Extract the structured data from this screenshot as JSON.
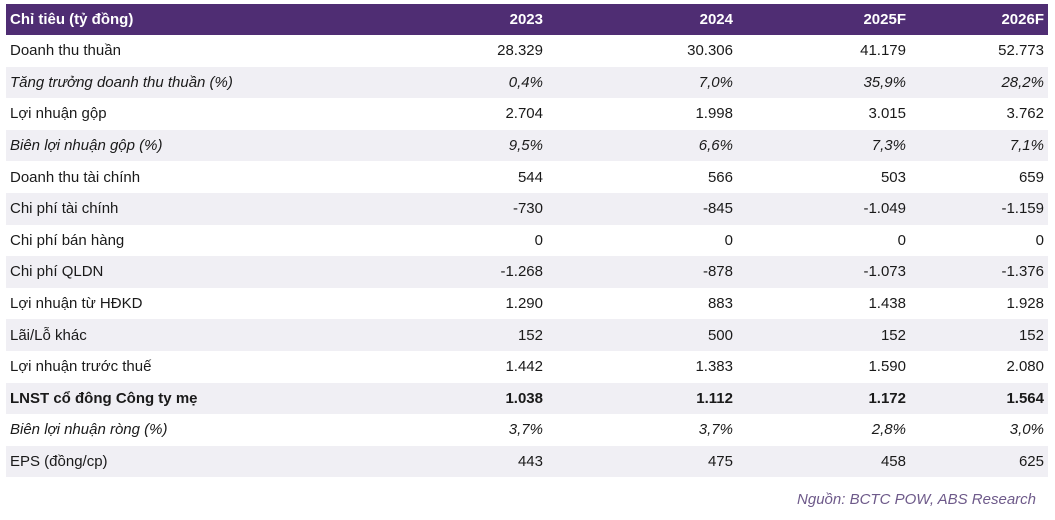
{
  "table": {
    "headers": [
      "Chỉ tiêu (tỷ đồng)",
      "2023",
      "2024",
      "2025F",
      "2026F"
    ],
    "rows": [
      {
        "label": "Doanh thu thuần",
        "values": [
          "28.329",
          "30.306",
          "41.179",
          "52.773"
        ],
        "style": "normal"
      },
      {
        "label": "Tăng trưởng doanh thu thuần (%)",
        "values": [
          "0,4%",
          "7,0%",
          "35,9%",
          "28,2%"
        ],
        "style": "italic"
      },
      {
        "label": "Lợi nhuận gộp",
        "values": [
          "2.704",
          "1.998",
          "3.015",
          "3.762"
        ],
        "style": "normal"
      },
      {
        "label": "Biên lợi nhuận gộp (%)",
        "values": [
          "9,5%",
          "6,6%",
          "7,3%",
          "7,1%"
        ],
        "style": "italic"
      },
      {
        "label": "Doanh thu tài chính",
        "values": [
          "544",
          "566",
          "503",
          "659"
        ],
        "style": "normal"
      },
      {
        "label": "Chi phí tài chính",
        "values": [
          "-730",
          "-845",
          "-1.049",
          "-1.159"
        ],
        "style": "normal"
      },
      {
        "label": "Chi phí bán hàng",
        "values": [
          "0",
          "0",
          "0",
          "0"
        ],
        "style": "normal"
      },
      {
        "label": "Chi phí QLDN",
        "values": [
          "-1.268",
          "-878",
          "-1.073",
          "-1.376"
        ],
        "style": "normal"
      },
      {
        "label": "Lợi nhuận từ HĐKD",
        "values": [
          "1.290",
          "883",
          "1.438",
          "1.928"
        ],
        "style": "normal"
      },
      {
        "label": "Lãi/Lỗ khác",
        "values": [
          "152",
          "500",
          "152",
          "152"
        ],
        "style": "normal"
      },
      {
        "label": "Lợi nhuận trước thuế",
        "values": [
          "1.442",
          "1.383",
          "1.590",
          "2.080"
        ],
        "style": "normal"
      },
      {
        "label": "LNST cổ đông Công ty mẹ",
        "values": [
          "1.038",
          "1.112",
          "1.172",
          "1.564"
        ],
        "style": "bold"
      },
      {
        "label": "Biên lợi nhuận ròng (%)",
        "values": [
          "3,7%",
          "3,7%",
          "2,8%",
          "3,0%"
        ],
        "style": "italic"
      },
      {
        "label": "EPS (đồng/cp)",
        "values": [
          "443",
          "475",
          "458",
          "625"
        ],
        "style": "normal"
      }
    ]
  },
  "source": "Nguồn: BCTC POW, ABS Research",
  "colors": {
    "header_bg": "#4f2d73",
    "stripe_bg": "#f0eff4",
    "source_text": "#6e5a8a"
  }
}
